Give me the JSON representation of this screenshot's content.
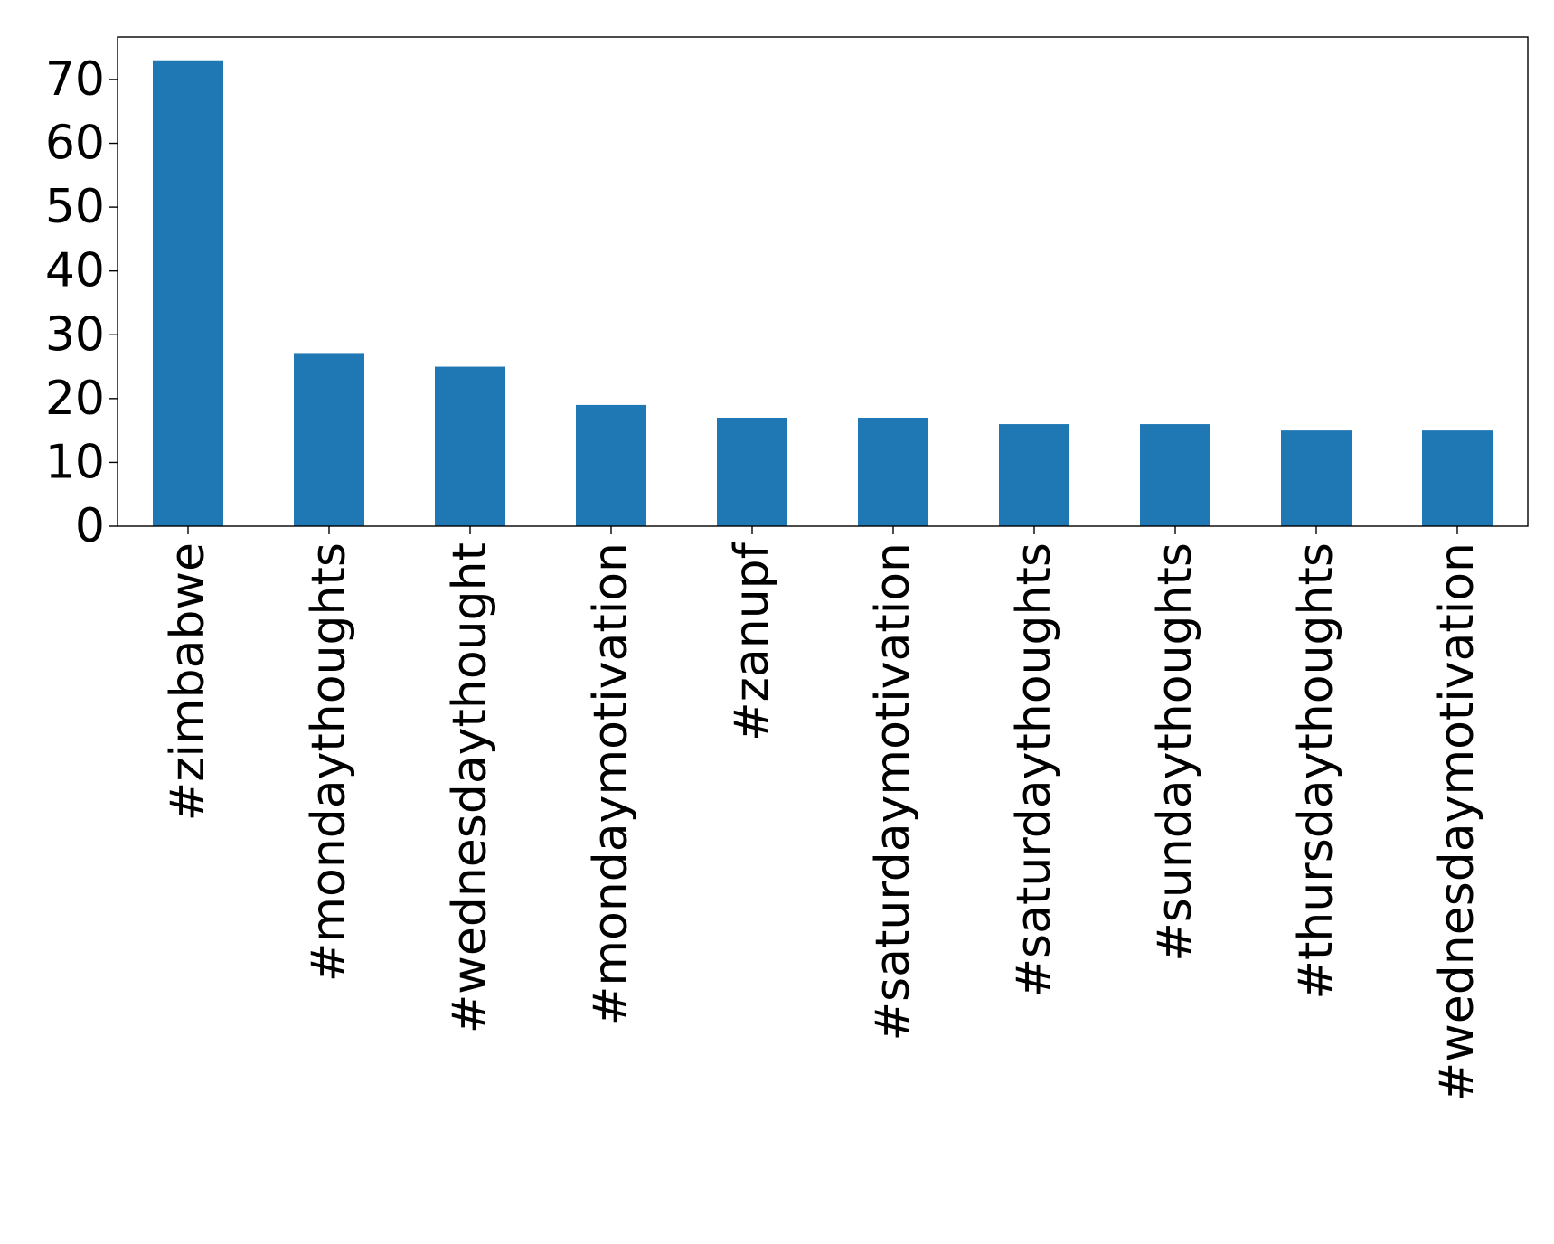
{
  "chart_data": {
    "type": "bar",
    "title": "",
    "xlabel": "",
    "ylabel": "",
    "categories": [
      "#zimbabwe",
      "#mondaythoughts",
      "#wednesdaythought",
      "#mondaymotivation",
      "#zanupf",
      "#saturdaymotivation",
      "#saturdaythoughts",
      "#sundaythoughts",
      "#thursdaythoughts",
      "#wednesdaymotivation"
    ],
    "values": [
      73,
      27,
      25,
      19,
      17,
      17,
      16,
      16,
      15,
      15
    ],
    "yticks": [
      0,
      10,
      20,
      30,
      40,
      50,
      60,
      70
    ],
    "ylim": [
      0,
      76.65
    ],
    "bar_color": "#1f77b4",
    "grid": false,
    "legend": false
  }
}
